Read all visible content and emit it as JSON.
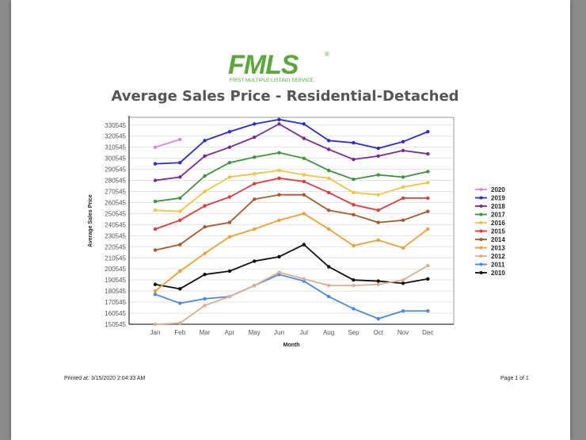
{
  "brand": {
    "name": "FMLS",
    "tagline": "FIRST MULTIPLE LISTING SERVICE",
    "registered_mark": "®",
    "color": "#5aa73a"
  },
  "footer": {
    "printed_label": "Printed at:",
    "printed_value": "3/15/2020 2:04:33 AM",
    "page": "Page 1 of 1"
  },
  "chart_data": {
    "type": "line",
    "title": "Average Sales Price - Residential-Detached",
    "xlabel": "Month",
    "ylabel": "Average Sales Price",
    "categories": [
      "Jan",
      "Feb",
      "Mar",
      "Apr",
      "May",
      "Jun",
      "Jul",
      "Aug",
      "Sep",
      "Oct",
      "Nov",
      "Dec"
    ],
    "yticks": [
      150545,
      160545,
      170545,
      180545,
      190545,
      200545,
      210545,
      220545,
      230545,
      240545,
      250545,
      260545,
      270545,
      280545,
      290545,
      300545,
      310545,
      320545,
      330545
    ],
    "ylim": [
      150545,
      337545
    ],
    "grid": true,
    "legend_position": "right",
    "series": [
      {
        "name": "2020",
        "color": "#d98ad6",
        "values": [
          310545,
          317545,
          null,
          null,
          null,
          null,
          null,
          null,
          null,
          null,
          null,
          null
        ]
      },
      {
        "name": "2019",
        "color": "#2a2ad6",
        "values": [
          295545,
          296545,
          316545,
          324545,
          331545,
          335545,
          331545,
          316545,
          314545,
          309545,
          315545,
          324545
        ]
      },
      {
        "name": "2018",
        "color": "#7a2a96",
        "values": [
          280545,
          283545,
          302545,
          310545,
          319545,
          331545,
          318545,
          308545,
          299545,
          302545,
          307545,
          304545
        ]
      },
      {
        "name": "2017",
        "color": "#3a963a",
        "values": [
          261545,
          264545,
          284545,
          296545,
          301545,
          305545,
          300545,
          289545,
          281545,
          285545,
          283545,
          288545
        ]
      },
      {
        "name": "2016",
        "color": "#f2c440",
        "values": [
          253545,
          252545,
          270545,
          283545,
          286545,
          289545,
          285545,
          282545,
          269545,
          267545,
          274545,
          278545
        ]
      },
      {
        "name": "2015",
        "color": "#e03a3a",
        "values": [
          236545,
          244545,
          257545,
          265545,
          277545,
          282545,
          279545,
          269545,
          258545,
          253545,
          264545,
          264545
        ]
      },
      {
        "name": "2014",
        "color": "#a85a2a",
        "values": [
          217545,
          222545,
          238545,
          242545,
          263545,
          267545,
          267545,
          253545,
          249545,
          242545,
          244545,
          252545
        ]
      },
      {
        "name": "2013",
        "color": "#f0a030",
        "values": [
          180545,
          198545,
          214545,
          229545,
          236545,
          244545,
          250545,
          236545,
          221545,
          226545,
          219545,
          236545
        ]
      },
      {
        "name": "2012",
        "color": "#d8b090",
        "values": [
          150545,
          151545,
          167545,
          175545,
          185545,
          197545,
          191545,
          185545,
          185545,
          186545,
          190545,
          203545
        ]
      },
      {
        "name": "2011",
        "color": "#4a8ae0",
        "values": [
          177545,
          169545,
          173545,
          175545,
          185545,
          195545,
          189545,
          175545,
          164545,
          155545,
          162545,
          162545
        ]
      },
      {
        "name": "2010",
        "color": "#111111",
        "values": [
          186545,
          182545,
          195545,
          198545,
          207545,
          211545,
          222545,
          202545,
          190545,
          189545,
          187545,
          191545
        ]
      }
    ]
  }
}
